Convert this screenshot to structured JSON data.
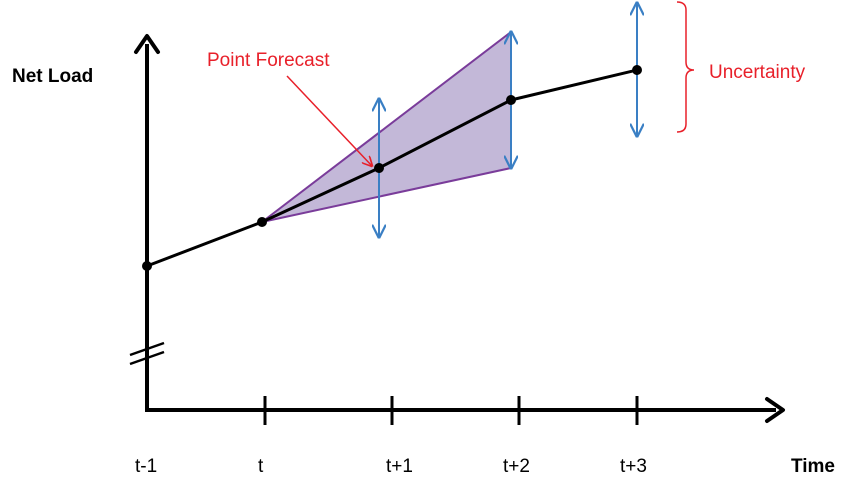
{
  "colors": {
    "axis": "#000000",
    "forecast_line": "#000000",
    "cone_fill": "#c3b8d8",
    "cone_edge": "#7a3c9a",
    "error_bar": "#3a7fc4",
    "annotation": "#e8202a"
  },
  "labels": {
    "y_axis": "Net Load",
    "x_axis": "Time",
    "point_forecast": "Point Forecast",
    "uncertainty": "Uncertainty"
  },
  "ticks": [
    "t-1",
    "t",
    "t+1",
    "t+2",
    "t+3"
  ]
}
